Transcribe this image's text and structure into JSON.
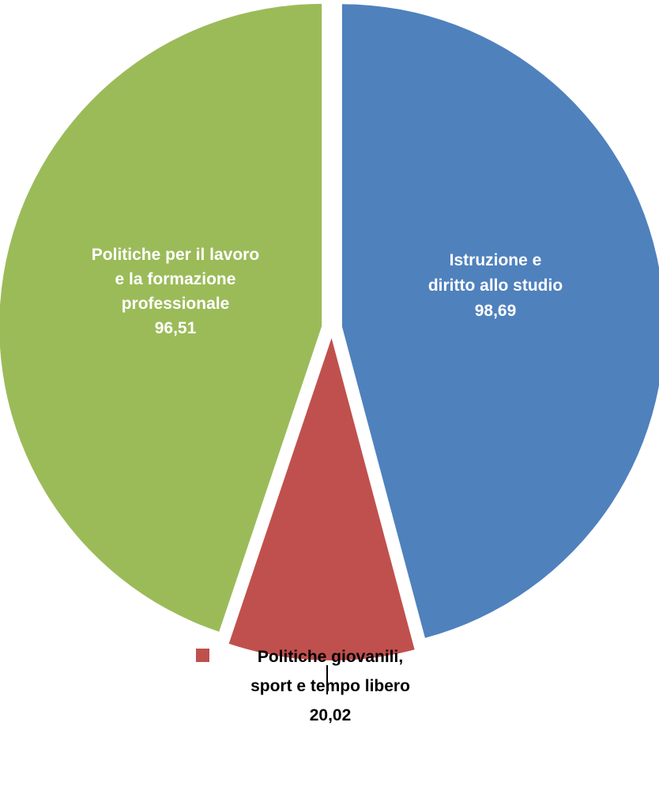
{
  "chart_data": {
    "type": "pie",
    "title": "",
    "slices": [
      {
        "label_lines": [
          "Istruzione e",
          "diritto allo studio"
        ],
        "value": 98.69,
        "value_label": "98,69",
        "color": "#4F81BD",
        "label_color": "#FFFFFF"
      },
      {
        "label_lines": [
          "Politiche giovanili,",
          "sport e tempo libero"
        ],
        "value": 20.02,
        "value_label": "20,02",
        "color": "#C0504D",
        "label_color": "#000000"
      },
      {
        "label_lines": [
          "Politiche per il lavoro",
          "e la formazione",
          "professionale"
        ],
        "value": 96.51,
        "value_label": "96,51",
        "color": "#9BBB59",
        "label_color": "#FFFFFF"
      }
    ],
    "start_angle": "12 o'clock",
    "direction": "clockwise",
    "exploded": true,
    "outside_label_marker": "square"
  }
}
